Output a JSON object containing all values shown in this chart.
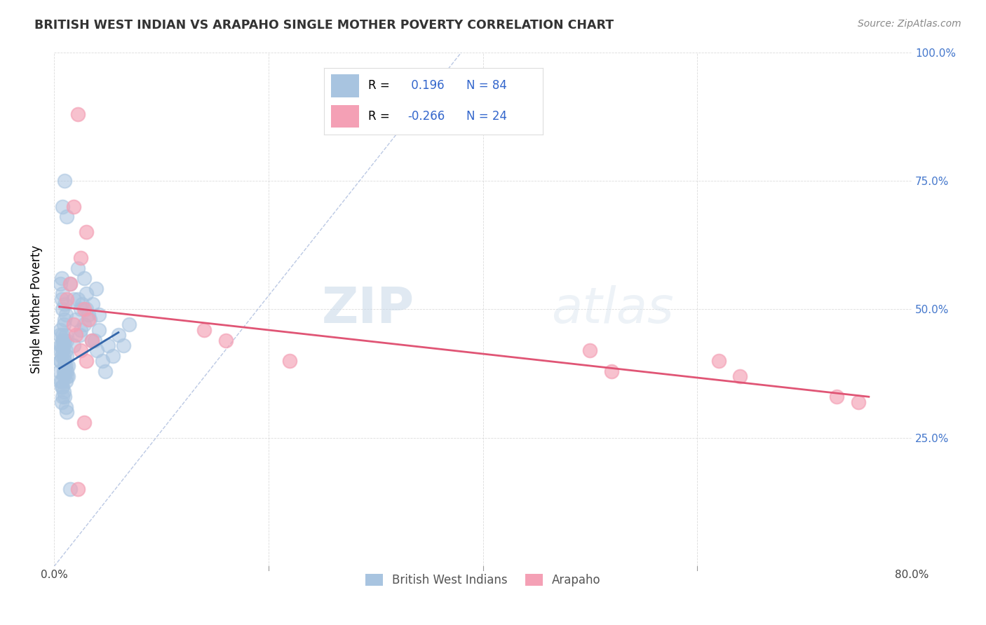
{
  "title": "BRITISH WEST INDIAN VS ARAPAHO SINGLE MOTHER POVERTY CORRELATION CHART",
  "source": "Source: ZipAtlas.com",
  "ylabel": "Single Mother Poverty",
  "xlim": [
    0.0,
    0.8
  ],
  "ylim": [
    0.0,
    1.0
  ],
  "xtick_vals": [
    0.0,
    0.2,
    0.4,
    0.6,
    0.8
  ],
  "xtick_labels": [
    "0.0%",
    "",
    "",
    "",
    "80.0%"
  ],
  "ytick_vals": [
    0.0,
    0.25,
    0.5,
    0.75,
    1.0
  ],
  "ytick_right_labels": [
    "",
    "25.0%",
    "50.0%",
    "75.0%",
    "100.0%"
  ],
  "blue_color": "#a8c4e0",
  "pink_color": "#f4a0b5",
  "blue_line_color": "#3366aa",
  "pink_line_color": "#e05575",
  "r_blue": 0.196,
  "n_blue": 84,
  "r_pink": -0.266,
  "n_pink": 24,
  "legend_label_blue": "British West Indians",
  "legend_label_pink": "Arapaho",
  "watermark_zip": "ZIP",
  "watermark_atlas": "atlas",
  "blue_scatter_x": [
    0.005,
    0.008,
    0.006,
    0.012,
    0.01,
    0.007,
    0.009,
    0.011,
    0.006,
    0.013,
    0.008,
    0.01,
    0.007,
    0.009,
    0.012,
    0.006,
    0.008,
    0.011,
    0.007,
    0.01,
    0.005,
    0.009,
    0.011,
    0.007,
    0.013,
    0.008,
    0.01,
    0.006,
    0.012,
    0.009,
    0.007,
    0.01,
    0.008,
    0.006,
    0.011,
    0.009,
    0.007,
    0.012,
    0.008,
    0.01,
    0.006,
    0.009,
    0.011,
    0.007,
    0.008,
    0.01,
    0.012,
    0.006,
    0.009,
    0.011,
    0.02,
    0.025,
    0.03,
    0.035,
    0.022,
    0.028,
    0.018,
    0.032,
    0.024,
    0.026,
    0.04,
    0.038,
    0.045,
    0.042,
    0.048,
    0.05,
    0.055,
    0.06,
    0.065,
    0.07,
    0.015,
    0.018,
    0.022,
    0.025,
    0.028,
    0.03,
    0.033,
    0.036,
    0.039,
    0.042,
    0.008,
    0.01,
    0.012,
    0.015
  ],
  "blue_scatter_y": [
    0.45,
    0.42,
    0.4,
    0.38,
    0.44,
    0.41,
    0.43,
    0.39,
    0.46,
    0.37,
    0.5,
    0.48,
    0.52,
    0.47,
    0.44,
    0.55,
    0.53,
    0.49,
    0.56,
    0.51,
    0.38,
    0.41,
    0.36,
    0.43,
    0.39,
    0.45,
    0.4,
    0.42,
    0.37,
    0.44,
    0.35,
    0.38,
    0.33,
    0.36,
    0.31,
    0.34,
    0.32,
    0.3,
    0.35,
    0.33,
    0.4,
    0.38,
    0.42,
    0.36,
    0.44,
    0.39,
    0.41,
    0.43,
    0.37,
    0.45,
    0.48,
    0.46,
    0.5,
    0.44,
    0.52,
    0.47,
    0.43,
    0.49,
    0.45,
    0.51,
    0.42,
    0.44,
    0.4,
    0.46,
    0.38,
    0.43,
    0.41,
    0.45,
    0.43,
    0.47,
    0.55,
    0.52,
    0.58,
    0.5,
    0.56,
    0.53,
    0.48,
    0.51,
    0.54,
    0.49,
    0.7,
    0.75,
    0.68,
    0.15
  ],
  "pink_scatter_x": [
    0.022,
    0.018,
    0.03,
    0.025,
    0.015,
    0.028,
    0.02,
    0.032,
    0.012,
    0.035,
    0.025,
    0.018,
    0.14,
    0.16,
    0.22,
    0.5,
    0.52,
    0.62,
    0.64,
    0.73,
    0.75,
    0.028,
    0.022,
    0.03
  ],
  "pink_scatter_y": [
    0.88,
    0.7,
    0.65,
    0.6,
    0.55,
    0.5,
    0.45,
    0.48,
    0.52,
    0.44,
    0.42,
    0.47,
    0.46,
    0.44,
    0.4,
    0.42,
    0.38,
    0.4,
    0.37,
    0.33,
    0.32,
    0.28,
    0.15,
    0.4
  ],
  "ref_line_x": [
    0.0,
    0.38
  ],
  "ref_line_y": [
    0.0,
    1.0
  ],
  "blue_trend_x": [
    0.005,
    0.06
  ],
  "blue_trend_y": [
    0.385,
    0.455
  ],
  "pink_trend_x": [
    0.005,
    0.76
  ],
  "pink_trend_y": [
    0.505,
    0.33
  ]
}
